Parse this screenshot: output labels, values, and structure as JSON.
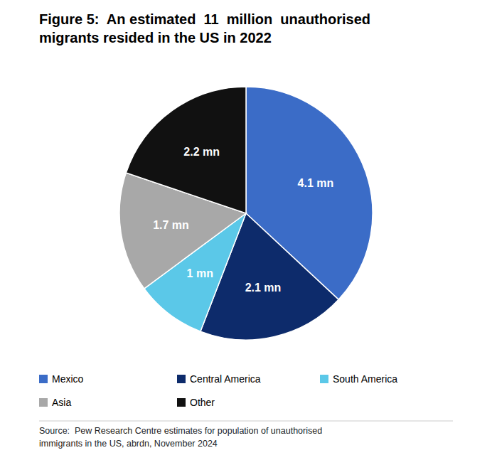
{
  "chart_data": {
    "type": "pie",
    "title": "Figure 5:  An estimated  11  million  unauthorised\nmigrants resided in the US in 2022",
    "categories": [
      "Mexico",
      "Central America",
      "South America",
      "Asia",
      "Other"
    ],
    "values": [
      4.1,
      2.1,
      1,
      1.7,
      2.2
    ],
    "value_labels": [
      "4.1 mn",
      "2.1 mn",
      "1 mn",
      "1.7 mn",
      "2.2 mn"
    ],
    "colors": [
      "#3B6CC7",
      "#0D2B6B",
      "#5BC8E8",
      "#A8A8A8",
      "#111111"
    ],
    "data_labels": true,
    "legend": "bottom",
    "annotations": [
      "Source:  Pew Research Centre estimates for population of unauthorised\nimmigrants in the US, abrdn, November 2024"
    ]
  }
}
